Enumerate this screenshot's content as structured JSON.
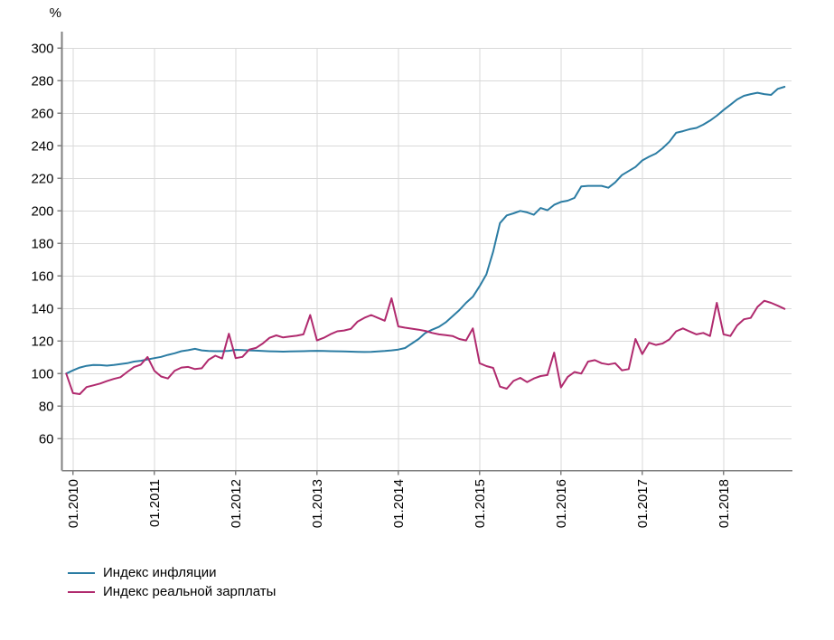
{
  "chart_data": {
    "type": "line",
    "title": "",
    "ylabel": "%",
    "grid": true,
    "legend_position": "bottom-left",
    "x_axis": {
      "tick_labels": [
        "01.2010",
        "01.2011",
        "01.2012",
        "01.2013",
        "01.2014",
        "01.2015",
        "01.2016",
        "01.2017",
        "01.2018"
      ],
      "start_month": "12.2009",
      "end_month": "10.2018",
      "frequency": "monthly"
    },
    "y_axis": {
      "min": 60,
      "max": 300,
      "step": 20,
      "unit": "%"
    },
    "series": [
      {
        "name": "Индекс инфляции",
        "color": "#2b7ca3",
        "values": [
          100.0,
          102.0,
          103.7,
          104.8,
          105.3,
          105.2,
          104.9,
          105.3,
          105.9,
          106.4,
          107.4,
          107.9,
          108.7,
          109.5,
          110.3,
          111.5,
          112.5,
          113.8,
          114.4,
          115.2,
          114.3,
          113.9,
          113.8,
          113.8,
          114.0,
          114.6,
          114.5,
          114.3,
          114.1,
          113.9,
          113.7,
          113.6,
          113.5,
          113.6,
          113.7,
          113.8,
          113.9,
          114.0,
          113.9,
          113.8,
          113.7,
          113.6,
          113.5,
          113.4,
          113.3,
          113.4,
          113.6,
          113.9,
          114.3,
          114.8,
          115.7,
          118.5,
          121.3,
          125.0,
          127.0,
          128.7,
          131.5,
          135.2,
          139.0,
          143.5,
          147.2,
          153.7,
          161.0,
          175.0,
          192.5,
          197.2,
          198.5,
          200.0,
          199.1,
          197.6,
          201.8,
          200.4,
          203.7,
          205.5,
          206.3,
          208.0,
          215.0,
          215.4,
          215.4,
          215.4,
          214.2,
          217.5,
          222.0,
          224.5,
          227.0,
          231.0,
          233.3,
          235.2,
          238.5,
          242.5,
          248.0,
          249.0,
          250.2,
          251.0,
          253.0,
          255.5,
          258.5,
          262.0,
          265.2,
          268.5,
          270.7,
          271.8,
          272.6,
          271.8,
          271.3,
          275.0,
          276.3
        ]
      },
      {
        "name": "Индекс реальной зарплаты",
        "color": "#b02a6e",
        "values": [
          100.0,
          88.0,
          87.4,
          91.7,
          92.8,
          93.9,
          95.4,
          96.7,
          97.8,
          101.0,
          104.0,
          105.5,
          110.2,
          101.8,
          98.2,
          97.0,
          101.8,
          103.7,
          104.1,
          102.8,
          103.3,
          108.5,
          111.0,
          109.3,
          124.5,
          109.5,
          110.3,
          114.8,
          115.8,
          118.5,
          122.0,
          123.5,
          122.2,
          122.8,
          123.3,
          124.1,
          136.0,
          120.4,
          122.0,
          124.2,
          126.0,
          126.5,
          127.5,
          132.0,
          134.3,
          136.0,
          134.2,
          132.5,
          146.3,
          129.0,
          128.2,
          127.6,
          127.0,
          126.2,
          125.0,
          124.1,
          123.6,
          123.1,
          121.3,
          120.4,
          127.8,
          106.4,
          104.6,
          103.5,
          92.0,
          90.7,
          95.5,
          97.4,
          94.8,
          97.0,
          98.5,
          99.1,
          112.9,
          91.5,
          98.0,
          101.0,
          100.0,
          107.4,
          108.3,
          106.4,
          105.6,
          106.4,
          102.0,
          102.8,
          121.3,
          112.0,
          119.0,
          117.6,
          118.5,
          121.0,
          126.0,
          127.8,
          125.9,
          124.1,
          125.0,
          123.1,
          143.5,
          124.1,
          123.1,
          129.6,
          133.4,
          134.2,
          141.0,
          144.8,
          143.5,
          141.7,
          139.8
        ]
      }
    ]
  },
  "colors": {
    "axis": "#808080",
    "grid": "#d9d9d9",
    "text": "#000000",
    "background": "#ffffff"
  }
}
